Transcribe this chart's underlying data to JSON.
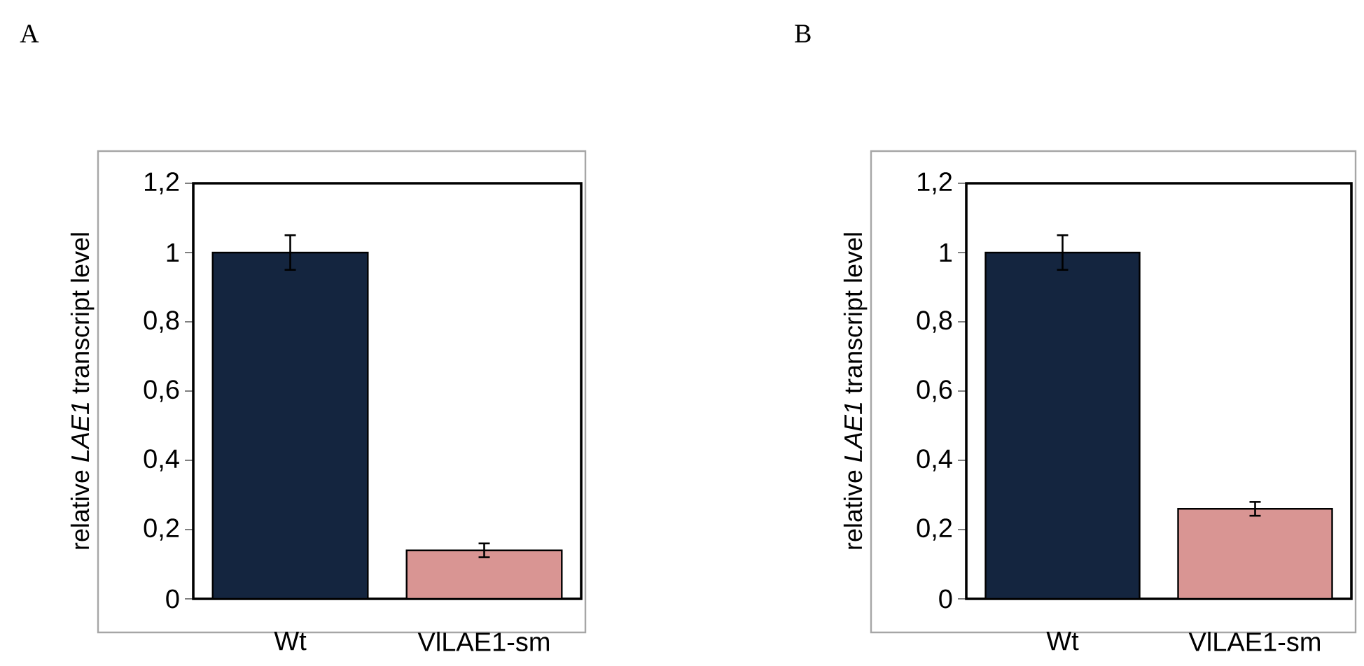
{
  "chart_data": [
    {
      "type": "bar",
      "title": "A",
      "ylabel": "relative *LAE1* transcript level",
      "categories": [
        "Wt",
        "VlLAE1-sm"
      ],
      "values": [
        1,
        0.14
      ],
      "errors": [
        0.05,
        0.02
      ],
      "colors": [
        "#14253f",
        "#d99593"
      ],
      "ylim": [
        0,
        1.2
      ],
      "yticks": [
        0,
        {
          "value": 0.2,
          "label": "0,2"
        },
        {
          "value": 0.4,
          "label": "0,4"
        },
        {
          "value": 0.6,
          "label": "0,6"
        },
        {
          "value": 0.8,
          "label": "0,8"
        },
        1,
        {
          "value": 1.2,
          "label": "1,2"
        }
      ]
    },
    {
      "type": "bar",
      "title": "B",
      "ylabel": "relative *LAE1* transcript level",
      "categories": [
        "Wt",
        "VlLAE1-sm"
      ],
      "values": [
        1,
        0.26
      ],
      "errors": [
        0.05,
        0.02
      ],
      "colors": [
        "#14253f",
        "#d99593"
      ],
      "ylim": [
        0,
        1.2
      ],
      "yticks": [
        0,
        {
          "value": 0.2,
          "label": "0,2"
        },
        {
          "value": 0.4,
          "label": "0,4"
        },
        {
          "value": 0.6,
          "label": "0,6"
        },
        {
          "value": 0.8,
          "label": "0,8"
        },
        1,
        {
          "value": 1.2,
          "label": "1,2"
        }
      ]
    }
  ]
}
